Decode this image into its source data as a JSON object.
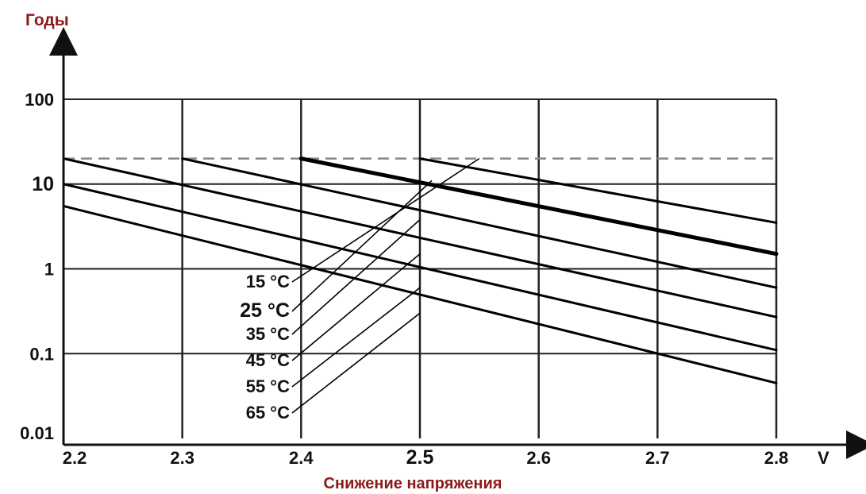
{
  "chart_data": {
    "type": "line",
    "title": "",
    "ylabel": "Годы",
    "xlabel": "Снижение напряжения",
    "x_unit": "V",
    "y_scale": "log",
    "xlim": [
      2.2,
      2.8
    ],
    "ylim": [
      0.01,
      100
    ],
    "grid": true,
    "x_ticks": [
      "2.2",
      "2.3",
      "2.4",
      "2.5",
      "2.6",
      "2.7",
      "2.8"
    ],
    "x_tick_values": [
      2.2,
      2.3,
      2.4,
      2.5,
      2.6,
      2.7,
      2.8
    ],
    "x_emphasized_tick": "2.5",
    "y_ticks": [
      "0.01",
      "0.1",
      "1",
      "10",
      "100"
    ],
    "y_tick_values": [
      0.01,
      0.1,
      1,
      10,
      100
    ],
    "y_emphasized_tick": "10",
    "reference_line": {
      "y": 20,
      "style": "dashed"
    },
    "series": [
      {
        "name": "15 °C",
        "bold": false,
        "x": [
          2.5,
          2.8
        ],
        "y": [
          20,
          3.5
        ]
      },
      {
        "name": "25 °C",
        "bold": true,
        "x": [
          2.4,
          2.8
        ],
        "y": [
          20,
          1.5
        ]
      },
      {
        "name": "35 °C",
        "bold": false,
        "x": [
          2.3,
          2.8
        ],
        "y": [
          20,
          0.6
        ]
      },
      {
        "name": "45 °C",
        "bold": false,
        "x": [
          2.2,
          2.8
        ],
        "y": [
          20,
          0.27
        ]
      },
      {
        "name": "55 °C",
        "bold": false,
        "x": [
          2.2,
          2.8
        ],
        "y": [
          10,
          0.11
        ]
      },
      {
        "name": "65 °C",
        "bold": false,
        "x": [
          2.2,
          2.8
        ],
        "y": [
          5.5,
          0.045
        ]
      }
    ],
    "label_leaders": [
      {
        "label": "15 °C",
        "to": [
          2.55,
          20
        ]
      },
      {
        "label": "25 °C",
        "to": [
          2.51,
          11
        ]
      },
      {
        "label": "35 °C",
        "to": [
          2.5,
          3.8
        ]
      },
      {
        "label": "45 °C",
        "to": [
          2.5,
          1.5
        ]
      },
      {
        "label": "55 °C",
        "to": [
          2.5,
          0.6
        ]
      },
      {
        "label": "65 °C",
        "to": [
          2.5,
          0.3
        ]
      }
    ]
  }
}
